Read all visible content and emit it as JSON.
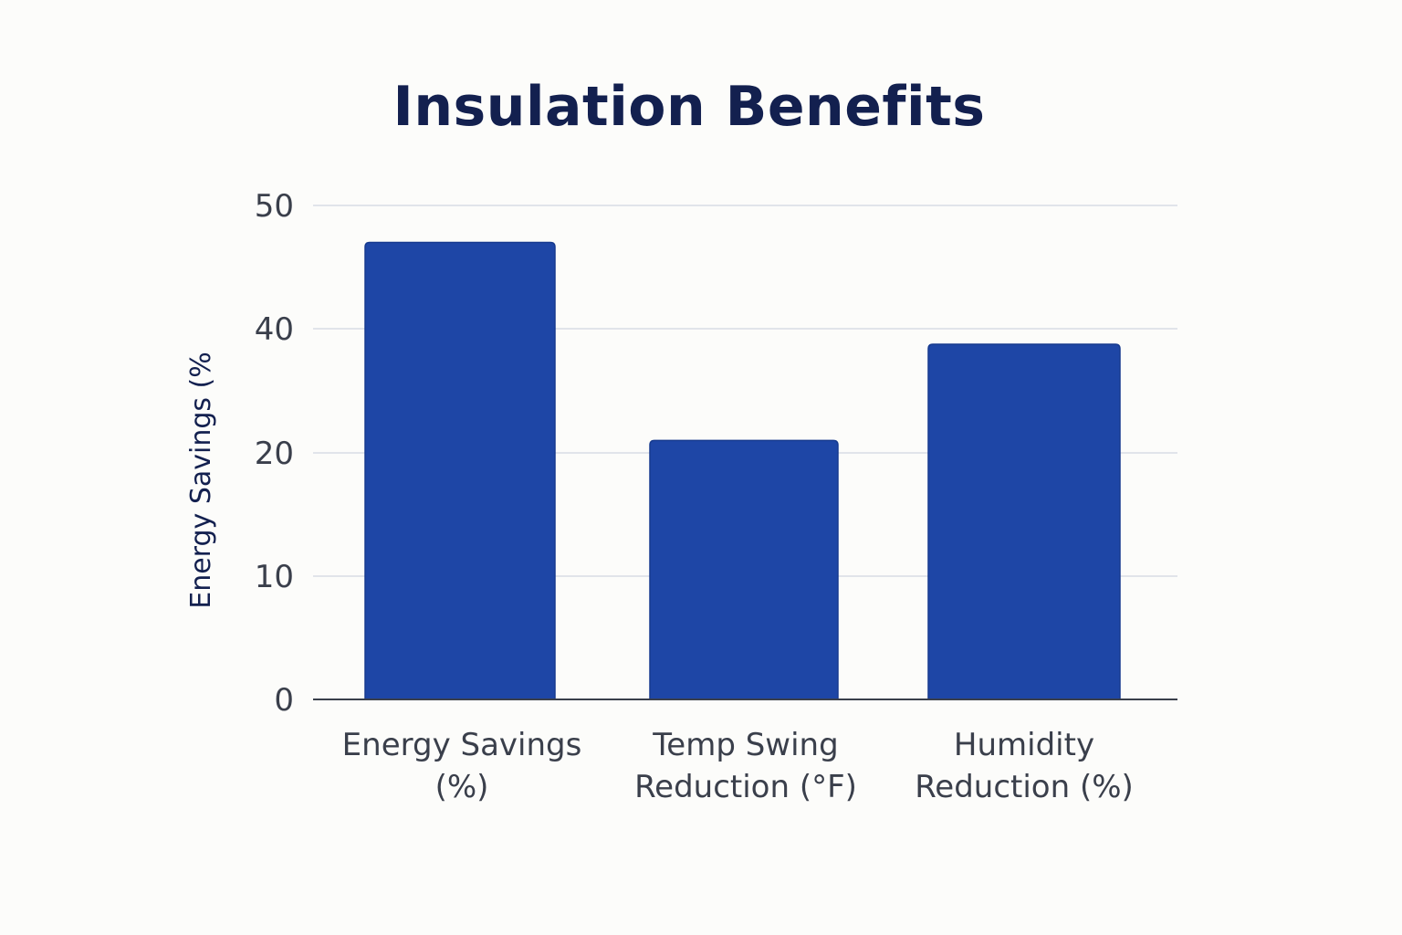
{
  "chart_data": {
    "type": "bar",
    "title": "Insulation Benefits",
    "ylabel": "Energy Savings (%",
    "xlabel": "",
    "categories": [
      [
        "Energy Savings",
        "(%)"
      ],
      [
        "Temp Swing",
        "Reduction (°F)"
      ],
      [
        "Humidity",
        "Reduction (%)"
      ]
    ],
    "values": [
      47,
      22,
      37.5
    ],
    "yticks": [
      0,
      10,
      20,
      40,
      50
    ],
    "ylim": [
      0,
      50
    ],
    "grid": true,
    "legend": "none",
    "colors": {
      "bar": "#1e46a6",
      "bar_stroke": "#163a8f",
      "grid": "#d8dbe4",
      "axis": "#3a3f4b",
      "title": "#13204f"
    }
  }
}
